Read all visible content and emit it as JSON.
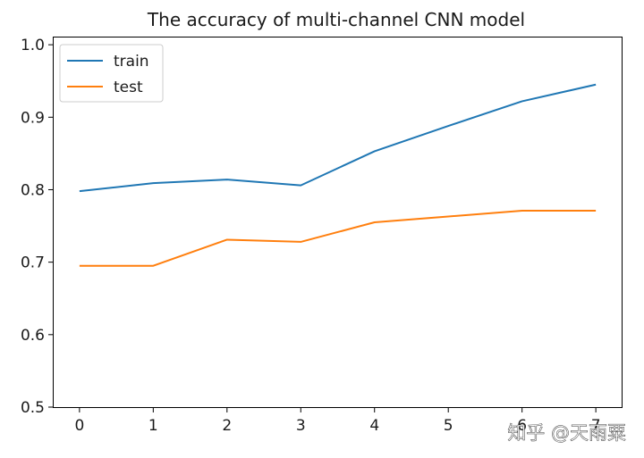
{
  "chart_data": {
    "type": "line",
    "title": "The accuracy of multi-channel CNN model",
    "xlabel": "",
    "ylabel": "",
    "x": [
      0,
      1,
      2,
      3,
      4,
      5,
      6,
      7
    ],
    "xlim": [
      -0.35,
      7.35
    ],
    "ylim": [
      0.5,
      1.01
    ],
    "xticks": [
      "0",
      "1",
      "2",
      "3",
      "4",
      "5",
      "6",
      "7"
    ],
    "yticks": [
      "0.5",
      "0.6",
      "0.7",
      "0.8",
      "0.9",
      "1.0"
    ],
    "grid": false,
    "legend_position": "top-left",
    "series": [
      {
        "name": "train",
        "color": "#1f77b4",
        "values": [
          0.798,
          0.809,
          0.814,
          0.806,
          0.853,
          0.888,
          0.922,
          0.945
        ]
      },
      {
        "name": "test",
        "color": "#ff7f0e",
        "values": [
          0.695,
          0.695,
          0.731,
          0.728,
          0.755,
          0.763,
          0.771,
          0.771
        ]
      }
    ]
  },
  "watermark": {
    "text": "知乎 @天雨粟"
  }
}
